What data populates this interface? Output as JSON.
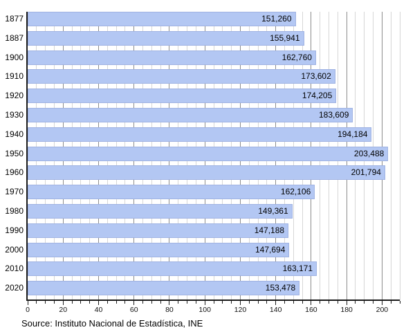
{
  "chart_data": {
    "type": "bar",
    "orientation": "horizontal",
    "title": "",
    "xlabel": "",
    "ylabel": "",
    "categories": [
      "1877",
      "1887",
      "1900",
      "1910",
      "1920",
      "1930",
      "1940",
      "1950",
      "1960",
      "1970",
      "1980",
      "1990",
      "2000",
      "2010",
      "2020"
    ],
    "values": [
      151260,
      155941,
      162760,
      173602,
      174205,
      183609,
      194184,
      203488,
      201794,
      162106,
      149361,
      147188,
      147694,
      163171,
      153478
    ],
    "value_labels": [
      "151,260",
      "155,941",
      "162,760",
      "173,602",
      "174,205",
      "183,609",
      "194,184",
      "203,488",
      "201,794",
      "162,106",
      "149,361",
      "147,188",
      "147,694",
      "163,171",
      "153,478"
    ],
    "x_axis": {
      "min": 0,
      "max": 210,
      "unit_scale": 1000,
      "tick_labels": [
        0,
        20,
        40,
        60,
        80,
        100,
        120,
        140,
        160,
        180,
        200
      ],
      "minor_tick_step": 5,
      "major_tick_step": 20
    },
    "grid": {
      "on": true,
      "minor_step": 5,
      "major_step": 20
    },
    "legend": null,
    "source": "Source: Instituto Nacional de Estadística, INE",
    "colors": {
      "bar_fill": "#b3c7f3",
      "bar_border": "#9fb2e2",
      "grid_minor": "#d6d6d6",
      "grid_major": "#8c8c8c",
      "axis": "#1a1a1a",
      "text": "#000000"
    }
  }
}
